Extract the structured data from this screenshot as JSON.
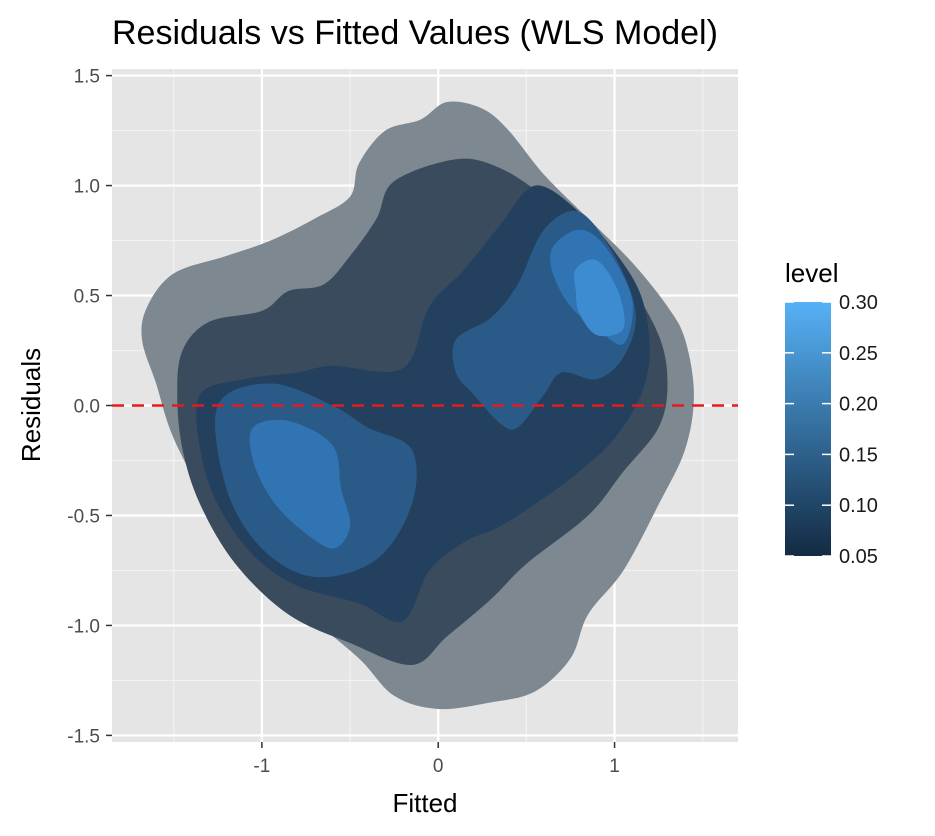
{
  "chart_data": {
    "type": "density_2d_filled",
    "title": "Residuals vs Fitted Values (WLS Model)",
    "xlabel": "Fitted",
    "ylabel": "Residuals",
    "xlim": [
      -1.85,
      1.7
    ],
    "ylim": [
      -1.53,
      1.53
    ],
    "x_ticks": [
      -1,
      0,
      1
    ],
    "x_tick_labels": [
      "-1",
      "0",
      "1"
    ],
    "y_ticks": [
      -1.5,
      -1.0,
      -0.5,
      0.0,
      0.5,
      1.0,
      1.5
    ],
    "y_tick_labels": [
      "-1.5",
      "-1.0",
      "-0.5",
      "0.0",
      "0.5",
      "1.0",
      "1.5"
    ],
    "grid": true,
    "panel_background": "#e5e5e5",
    "reference_line": {
      "y": 0.0,
      "style": "dashed",
      "color": "#e41a1c"
    },
    "legend": {
      "title": "level",
      "position": "right",
      "type": "colorbar",
      "breaks": [
        0.05,
        0.1,
        0.15,
        0.2,
        0.25,
        0.3
      ],
      "labels": [
        "0.05",
        "0.10",
        "0.15",
        "0.20",
        "0.25",
        "0.30"
      ],
      "color_low": "#132b43",
      "color_high": "#56b1f7"
    },
    "contour_levels": [
      {
        "level": 0.05,
        "color": "#7d8891",
        "points": [
          [
            -1.65,
            0.45
          ],
          [
            -1.5,
            0.6
          ],
          [
            -1.2,
            0.68
          ],
          [
            -0.95,
            0.75
          ],
          [
            -0.7,
            0.85
          ],
          [
            -0.5,
            0.95
          ],
          [
            -0.45,
            1.1
          ],
          [
            -0.3,
            1.25
          ],
          [
            -0.1,
            1.3
          ],
          [
            0.05,
            1.38
          ],
          [
            0.25,
            1.35
          ],
          [
            0.4,
            1.25
          ],
          [
            0.6,
            1.05
          ],
          [
            0.85,
            0.85
          ],
          [
            1.1,
            0.65
          ],
          [
            1.3,
            0.45
          ],
          [
            1.4,
            0.3
          ],
          [
            1.45,
            0.05
          ],
          [
            1.4,
            -0.2
          ],
          [
            1.25,
            -0.45
          ],
          [
            1.05,
            -0.75
          ],
          [
            0.85,
            -0.95
          ],
          [
            0.75,
            -1.15
          ],
          [
            0.55,
            -1.3
          ],
          [
            0.3,
            -1.35
          ],
          [
            0.0,
            -1.38
          ],
          [
            -0.25,
            -1.32
          ],
          [
            -0.45,
            -1.15
          ],
          [
            -0.75,
            -0.95
          ],
          [
            -1.05,
            -0.75
          ],
          [
            -1.3,
            -0.45
          ],
          [
            -1.5,
            -0.15
          ],
          [
            -1.6,
            0.1
          ],
          [
            -1.68,
            0.3
          ]
        ]
      },
      {
        "level": 0.1,
        "color": "#3b4b5e",
        "points": [
          [
            -1.45,
            0.25
          ],
          [
            -1.3,
            0.38
          ],
          [
            -1.0,
            0.43
          ],
          [
            -0.85,
            0.52
          ],
          [
            -0.65,
            0.55
          ],
          [
            -0.5,
            0.68
          ],
          [
            -0.35,
            0.85
          ],
          [
            -0.25,
            1.02
          ],
          [
            0.1,
            1.12
          ],
          [
            0.35,
            1.08
          ],
          [
            0.6,
            0.95
          ],
          [
            0.85,
            0.78
          ],
          [
            1.05,
            0.6
          ],
          [
            1.25,
            0.32
          ],
          [
            1.3,
            0.1
          ],
          [
            1.25,
            -0.1
          ],
          [
            1.05,
            -0.3
          ],
          [
            0.85,
            -0.5
          ],
          [
            0.5,
            -0.72
          ],
          [
            0.3,
            -0.88
          ],
          [
            0.05,
            -1.05
          ],
          [
            -0.15,
            -1.18
          ],
          [
            -0.5,
            -1.08
          ],
          [
            -0.85,
            -0.95
          ],
          [
            -1.15,
            -0.72
          ],
          [
            -1.35,
            -0.45
          ],
          [
            -1.45,
            -0.2
          ],
          [
            -1.48,
            0.05
          ]
        ]
      },
      {
        "level": 0.15,
        "color": "#23415f",
        "points": [
          [
            -1.35,
            0.05
          ],
          [
            -1.1,
            0.12
          ],
          [
            -0.8,
            0.15
          ],
          [
            -0.6,
            0.18
          ],
          [
            -0.2,
            0.17
          ],
          [
            -0.05,
            0.45
          ],
          [
            0.15,
            0.62
          ],
          [
            0.35,
            0.82
          ],
          [
            0.55,
            1.0
          ],
          [
            0.8,
            0.88
          ],
          [
            1.0,
            0.7
          ],
          [
            1.15,
            0.5
          ],
          [
            1.2,
            0.25
          ],
          [
            1.15,
            0.05
          ],
          [
            1.0,
            -0.15
          ],
          [
            0.8,
            -0.3
          ],
          [
            0.6,
            -0.42
          ],
          [
            0.35,
            -0.55
          ],
          [
            0.15,
            -0.62
          ],
          [
            -0.05,
            -0.75
          ],
          [
            -0.2,
            -0.98
          ],
          [
            -0.45,
            -0.9
          ],
          [
            -0.8,
            -0.82
          ],
          [
            -1.05,
            -0.68
          ],
          [
            -1.25,
            -0.45
          ],
          [
            -1.35,
            -0.2
          ]
        ]
      },
      {
        "level": 0.2,
        "color": "#2a5a88",
        "points": [
          [
            -1.25,
            0.0
          ],
          [
            -0.95,
            0.1
          ],
          [
            -0.6,
            0.0
          ],
          [
            -0.4,
            -0.1
          ],
          [
            -0.15,
            -0.2
          ],
          [
            -0.15,
            -0.45
          ],
          [
            -0.35,
            -0.7
          ],
          [
            -0.7,
            -0.78
          ],
          [
            -1.0,
            -0.65
          ],
          [
            -1.2,
            -0.38
          ]
        ]
      },
      {
        "level": 0.2,
        "color": "#2a5a88",
        "points": [
          [
            0.1,
            0.3
          ],
          [
            0.3,
            0.4
          ],
          [
            0.45,
            0.55
          ],
          [
            0.6,
            0.8
          ],
          [
            0.8,
            0.88
          ],
          [
            1.0,
            0.68
          ],
          [
            1.12,
            0.42
          ],
          [
            1.05,
            0.22
          ],
          [
            0.9,
            0.12
          ],
          [
            0.7,
            0.15
          ],
          [
            0.6,
            0.05
          ],
          [
            0.45,
            -0.1
          ],
          [
            0.35,
            -0.08
          ],
          [
            0.2,
            0.05
          ],
          [
            0.1,
            0.15
          ]
        ]
      },
      {
        "level": 0.25,
        "color": "#3074b4",
        "points": [
          [
            -1.05,
            -0.1
          ],
          [
            -0.85,
            -0.07
          ],
          [
            -0.6,
            -0.18
          ],
          [
            -0.55,
            -0.38
          ],
          [
            -0.5,
            -0.55
          ],
          [
            -0.6,
            -0.65
          ],
          [
            -0.8,
            -0.55
          ],
          [
            -0.95,
            -0.42
          ],
          [
            -1.05,
            -0.25
          ]
        ]
      },
      {
        "level": 0.25,
        "color": "#3074b4",
        "points": [
          [
            0.65,
            0.72
          ],
          [
            0.8,
            0.8
          ],
          [
            0.95,
            0.72
          ],
          [
            1.1,
            0.48
          ],
          [
            1.05,
            0.28
          ],
          [
            0.9,
            0.35
          ],
          [
            0.75,
            0.45
          ],
          [
            0.65,
            0.6
          ]
        ]
      },
      {
        "level": 0.3,
        "color": "#3d8cd2",
        "points": [
          [
            0.78,
            0.62
          ],
          [
            0.9,
            0.66
          ],
          [
            1.02,
            0.52
          ],
          [
            1.05,
            0.35
          ],
          [
            0.9,
            0.32
          ],
          [
            0.8,
            0.42
          ],
          [
            0.78,
            0.52
          ]
        ]
      }
    ]
  }
}
